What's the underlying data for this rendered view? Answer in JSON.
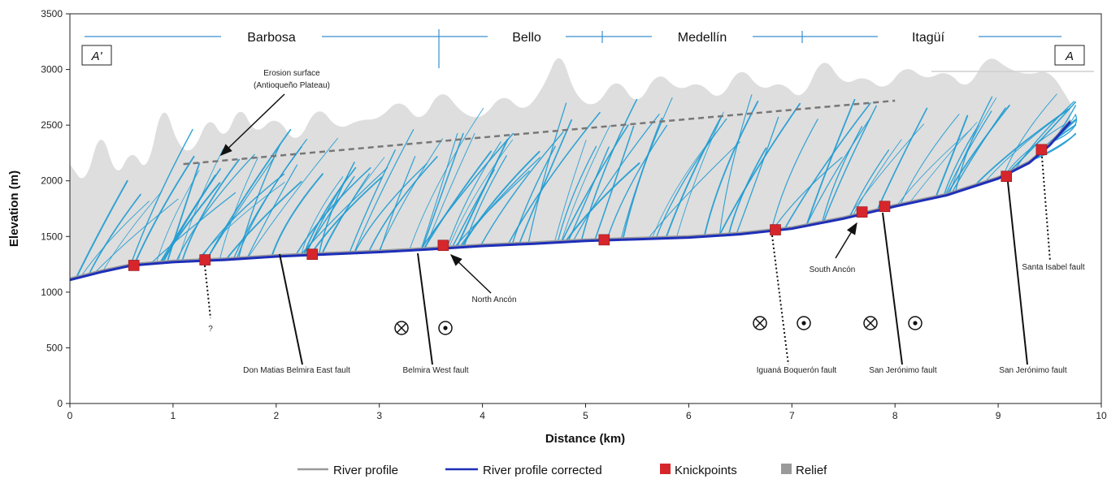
{
  "colors": {
    "relief": "#dedede",
    "stream": "#1e9bd2",
    "river_profile": "#9a9a9a",
    "river_profile_corrected": "#1e2fb8",
    "knickpoint": "#d6262c",
    "erosion_surface": "#777777",
    "town_line": "#3a8fd0",
    "legend_relief": "#9a9a9a"
  },
  "section_labels": {
    "left": "A'",
    "right": "A"
  },
  "towns": [
    {
      "name": "Barbosa"
    },
    {
      "name": "Bello"
    },
    {
      "name": "Medellín"
    },
    {
      "name": "Itagüí"
    }
  ],
  "annotations": {
    "erosion_surface_line1": "Erosion surface",
    "erosion_surface_line2": "(Antioqueño Plateau)",
    "question": "?",
    "north_ancon": "North Ancón",
    "south_ancon": "South Ancón",
    "faults": [
      "Don Matias Belmira East fault",
      "Belmira West fault",
      "Iguaná Boquerón fault",
      "San Jerónimo fault",
      "San Jerónimo fault",
      "Santa Isabel fault"
    ]
  },
  "legend": [
    {
      "label": "River profile",
      "icon": "gray-line"
    },
    {
      "label": "River profile corrected",
      "icon": "blue-line"
    },
    {
      "label": "Knickpoints",
      "icon": "red-square"
    },
    {
      "label": "Relief",
      "icon": "gray-square"
    }
  ],
  "chart_data": {
    "type": "line",
    "title": "",
    "xlabel": "Distance (km)",
    "ylabel": "Elevation (m)",
    "xlim": [
      0,
      10
    ],
    "ylim": [
      0,
      3500
    ],
    "xticks": [
      0,
      1,
      2,
      3,
      4,
      5,
      6,
      7,
      8,
      9,
      10
    ],
    "yticks": [
      0,
      500,
      1000,
      1500,
      2000,
      2500,
      3000,
      3500
    ],
    "grid": false,
    "legend_position": "bottom",
    "series": [
      {
        "name": "River profile corrected",
        "x": [
          0,
          0.3,
          0.6,
          1.0,
          1.5,
          2.0,
          2.5,
          3.0,
          3.5,
          4.0,
          4.5,
          5.0,
          5.5,
          6.0,
          6.5,
          7.0,
          7.5,
          8.0,
          8.5,
          9.0,
          9.3,
          9.5,
          9.7
        ],
        "y": [
          1110,
          1180,
          1240,
          1270,
          1290,
          1320,
          1340,
          1360,
          1385,
          1415,
          1435,
          1460,
          1475,
          1490,
          1520,
          1570,
          1660,
          1770,
          1870,
          2020,
          2160,
          2320,
          2530
        ]
      },
      {
        "name": "Erosion surface",
        "x": [
          1.1,
          8.0
        ],
        "y": [
          2150,
          2720
        ]
      }
    ],
    "knickpoints": {
      "name": "Knickpoints",
      "x": [
        0.62,
        1.31,
        2.35,
        3.62,
        5.18,
        6.84,
        7.68,
        7.9,
        9.08,
        9.42
      ],
      "y": [
        1240,
        1290,
        1340,
        1420,
        1470,
        1560,
        1720,
        1770,
        2040,
        2280
      ]
    },
    "relief": {
      "name": "Relief",
      "x": [
        0,
        0.15,
        0.3,
        0.45,
        0.6,
        0.75,
        0.9,
        1.05,
        1.2,
        1.35,
        1.5,
        1.65,
        1.8,
        2.0,
        2.2,
        2.4,
        2.6,
        2.8,
        3.0,
        3.2,
        3.4,
        3.6,
        3.8,
        4.0,
        4.2,
        4.4,
        4.6,
        4.75,
        4.9,
        5.1,
        5.3,
        5.5,
        5.7,
        5.9,
        6.1,
        6.3,
        6.5,
        6.7,
        6.9,
        7.1,
        7.3,
        7.5,
        7.7,
        7.9,
        8.1,
        8.3,
        8.5,
        8.7,
        8.9,
        9.1,
        9.3,
        9.5,
        9.7
      ],
      "y": [
        2150,
        1950,
        2500,
        2000,
        2300,
        2050,
        2750,
        2300,
        2250,
        2600,
        2350,
        2700,
        2400,
        2600,
        2300,
        2700,
        2450,
        2550,
        2550,
        2750,
        2500,
        2850,
        2600,
        2550,
        2800,
        2600,
        2850,
        3200,
        2750,
        2650,
        2950,
        2650,
        3000,
        2800,
        2900,
        2700,
        3050,
        2800,
        2900,
        2700,
        3150,
        2850,
        2950,
        2800,
        3050,
        2900,
        3000,
        2800,
        3150,
        3000,
        2950,
        3000,
        2700
      ]
    }
  }
}
